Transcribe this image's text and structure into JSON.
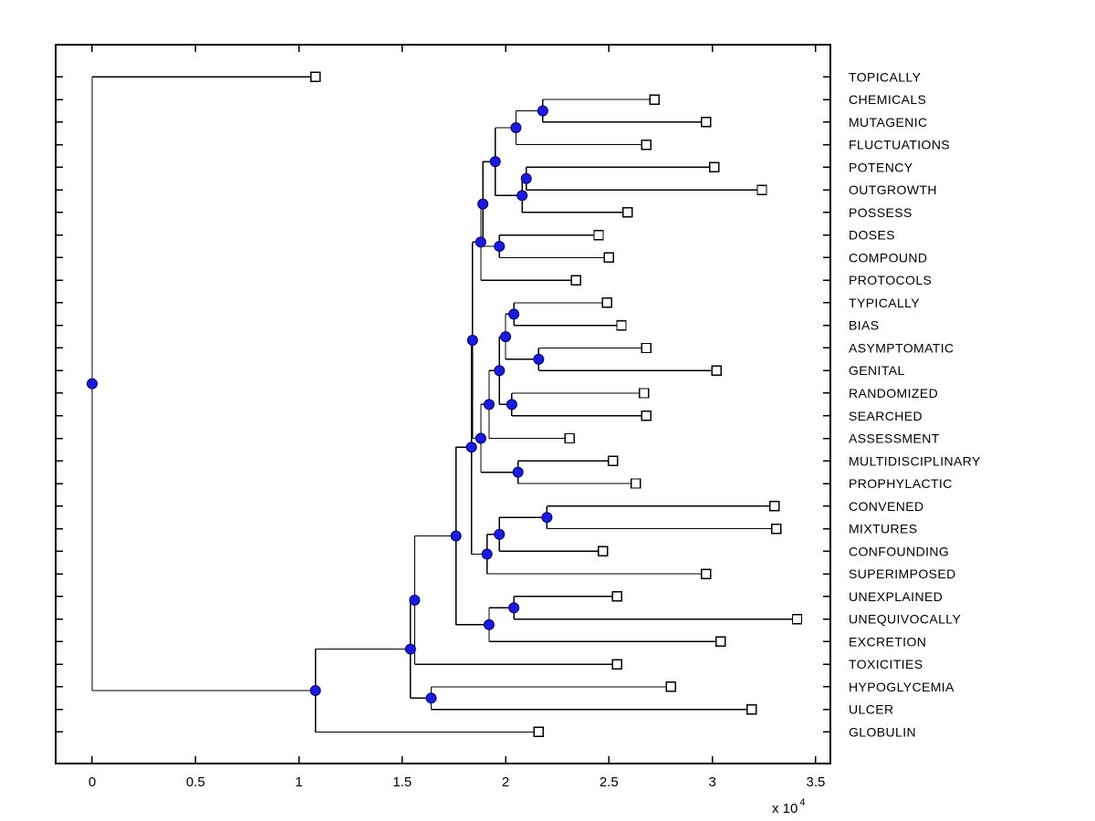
{
  "figure": {
    "background_color": "#ffffff",
    "line_color": "#000000",
    "node_marker_fill": "#1a1ae6",
    "node_marker_edge": "#000066",
    "leaf_marker_fill": "#ffffff",
    "leaf_marker_edge": "#000000"
  },
  "chart_data": {
    "type": "dendrogram",
    "title": "",
    "orientation": "horizontal-left-root",
    "grid": false,
    "legend": null,
    "x_axis": {
      "ticks": [
        0,
        0.5,
        1,
        1.5,
        2,
        2.5,
        3,
        3.5
      ],
      "tick_labels": [
        "0",
        "0.5",
        "1",
        "1.5",
        "2",
        "2.5",
        "3",
        "3.5"
      ],
      "multiplier_base": "x 10",
      "multiplier_exp": "4",
      "xlim": [
        -0.1765,
        3.571
      ],
      "units_scale": 10000
    },
    "y_axis": {
      "rows": 30,
      "ylim": [
        -0.4257,
        31.3955
      ]
    },
    "leaves": [
      {
        "label": "TOPICALLY",
        "x": 1.08
      },
      {
        "label": "CHEMICALS",
        "x": 2.72
      },
      {
        "label": "MUTAGENIC",
        "x": 2.97
      },
      {
        "label": "FLUCTUATIONS",
        "x": 2.68
      },
      {
        "label": "POTENCY",
        "x": 3.01
      },
      {
        "label": "OUTGROWTH",
        "x": 3.24
      },
      {
        "label": "POSSESS",
        "x": 2.59
      },
      {
        "label": "DOSES",
        "x": 2.45
      },
      {
        "label": "COMPOUND",
        "x": 2.5
      },
      {
        "label": "PROTOCOLS",
        "x": 2.34
      },
      {
        "label": "TYPICALLY",
        "x": 2.49
      },
      {
        "label": "BIAS",
        "x": 2.56
      },
      {
        "label": "ASYMPTOMATIC",
        "x": 2.68
      },
      {
        "label": "GENITAL",
        "x": 3.02
      },
      {
        "label": "RANDOMIZED",
        "x": 2.67
      },
      {
        "label": "SEARCHED",
        "x": 2.68
      },
      {
        "label": "ASSESSMENT",
        "x": 2.31
      },
      {
        "label": "MULTIDISCIPLINARY",
        "x": 2.52
      },
      {
        "label": "PROPHYLACTIC",
        "x": 2.63
      },
      {
        "label": "CONVENED",
        "x": 3.3
      },
      {
        "label": "MIXTURES",
        "x": 3.31
      },
      {
        "label": "CONFOUNDING",
        "x": 2.47
      },
      {
        "label": "SUPERIMPOSED",
        "x": 2.97
      },
      {
        "label": "UNEXPLAINED",
        "x": 2.54
      },
      {
        "label": "UNEQUIVOCALLY",
        "x": 3.41
      },
      {
        "label": "EXCRETION",
        "x": 3.04
      },
      {
        "label": "TOXICITIES",
        "x": 2.54
      },
      {
        "label": "HYPOGLYCEMIA",
        "x": 2.8
      },
      {
        "label": "ULCER",
        "x": 3.19
      },
      {
        "label": "GLOBULIN",
        "x": 2.16
      }
    ],
    "nodes": [
      {
        "id": "n1",
        "x": 2.18,
        "children": [
          "CHEMICALS",
          "MUTAGENIC"
        ]
      },
      {
        "id": "n2",
        "x": 2.05,
        "children": [
          "n1",
          "FLUCTUATIONS"
        ]
      },
      {
        "id": "n3",
        "x": 2.1,
        "children": [
          "POTENCY",
          "OUTGROWTH"
        ]
      },
      {
        "id": "n4",
        "x": 2.08,
        "children": [
          "n3",
          "POSSESS"
        ]
      },
      {
        "id": "n5",
        "x": 1.95,
        "children": [
          "n2",
          "n4"
        ]
      },
      {
        "id": "n6",
        "x": 1.97,
        "children": [
          "DOSES",
          "COMPOUND"
        ]
      },
      {
        "id": "n7",
        "x": 1.89,
        "children": [
          "n5",
          "n6"
        ]
      },
      {
        "id": "n8",
        "x": 1.88,
        "children": [
          "n7",
          "PROTOCOLS"
        ]
      },
      {
        "id": "n9",
        "x": 2.04,
        "children": [
          "TYPICALLY",
          "BIAS"
        ]
      },
      {
        "id": "n10",
        "x": 2.16,
        "children": [
          "ASYMPTOMATIC",
          "GENITAL"
        ]
      },
      {
        "id": "n11",
        "x": 2.0,
        "children": [
          "n9",
          "n10"
        ]
      },
      {
        "id": "n12",
        "x": 2.03,
        "children": [
          "RANDOMIZED",
          "SEARCHED"
        ]
      },
      {
        "id": "n13",
        "x": 1.97,
        "children": [
          "n11",
          "n12"
        ]
      },
      {
        "id": "n14",
        "x": 1.92,
        "children": [
          "n13",
          "ASSESSMENT"
        ]
      },
      {
        "id": "n15",
        "x": 2.06,
        "children": [
          "MULTIDISCIPLINARY",
          "PROPHYLACTIC"
        ]
      },
      {
        "id": "n16",
        "x": 1.88,
        "children": [
          "n14",
          "n15"
        ]
      },
      {
        "id": "n17",
        "x": 1.84,
        "children": [
          "n8",
          "n16"
        ]
      },
      {
        "id": "n18",
        "x": 2.2,
        "children": [
          "CONVENED",
          "MIXTURES"
        ]
      },
      {
        "id": "n19",
        "x": 1.97,
        "children": [
          "n18",
          "CONFOUNDING"
        ]
      },
      {
        "id": "n20",
        "x": 1.91,
        "children": [
          "n19",
          "SUPERIMPOSED"
        ]
      },
      {
        "id": "n21",
        "x": 1.835,
        "children": [
          "n17",
          "n20"
        ]
      },
      {
        "id": "n22",
        "x": 2.04,
        "children": [
          "UNEXPLAINED",
          "UNEQUIVOCALLY"
        ]
      },
      {
        "id": "n23",
        "x": 1.92,
        "children": [
          "n22",
          "EXCRETION"
        ]
      },
      {
        "id": "n24",
        "x": 1.76,
        "children": [
          "n21",
          "n23"
        ]
      },
      {
        "id": "n25",
        "x": 1.56,
        "children": [
          "n24",
          "TOXICITIES"
        ]
      },
      {
        "id": "n26",
        "x": 1.64,
        "children": [
          "HYPOGLYCEMIA",
          "ULCER"
        ]
      },
      {
        "id": "n27",
        "x": 1.54,
        "children": [
          "n25",
          "n26"
        ]
      },
      {
        "id": "n28",
        "x": 1.08,
        "children": [
          "n27",
          "GLOBULIN"
        ]
      },
      {
        "id": "root",
        "x": 0.0,
        "children": [
          "TOPICALLY",
          "n28"
        ]
      }
    ]
  }
}
